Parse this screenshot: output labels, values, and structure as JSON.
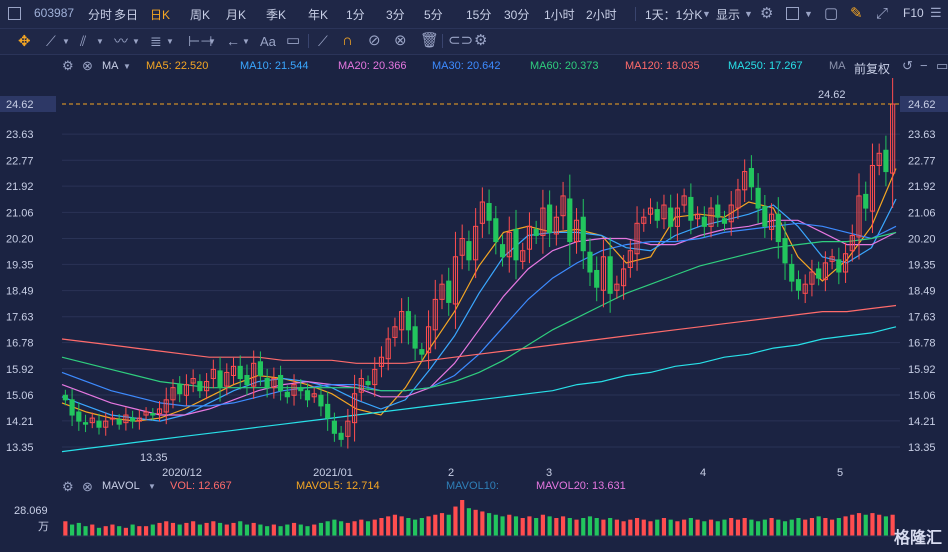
{
  "stock_code": "603987",
  "period_tabs": [
    "分时",
    "多日",
    "日K",
    "周K",
    "月K",
    "季K",
    "年K",
    "1分",
    "3分",
    "5分",
    "15分",
    "30分",
    "1小时",
    "2小时"
  ],
  "active_tab": "日K",
  "combo_label": "1天：1分K",
  "display_label": "显示",
  "f10_label": "F10",
  "draw_tools": {
    "text_tool_label": "Aa"
  },
  "ma_panel": {
    "indicator": "MA",
    "items": [
      {
        "label": "MA5: 22.520",
        "color": "#f5a623"
      },
      {
        "label": "MA10: 21.544",
        "color": "#3aa7ff"
      },
      {
        "label": "MA20: 20.366",
        "color": "#e577e0"
      },
      {
        "label": "MA30: 20.642",
        "color": "#3d8bff"
      },
      {
        "label": "MA60: 20.373",
        "color": "#2fce7e"
      },
      {
        "label": "MA120: 18.035",
        "color": "#ff6b6b"
      },
      {
        "label": "MA250: 17.267",
        "color": "#28e0e8"
      },
      {
        "label": "MA",
        "color": "#8c93ad"
      }
    ],
    "adjust_label": "前复权"
  },
  "price_axis": [
    "24.62",
    "23.63",
    "22.77",
    "21.92",
    "21.06",
    "20.20",
    "19.35",
    "18.49",
    "17.63",
    "16.78",
    "15.92",
    "15.06",
    "14.21",
    "13.35"
  ],
  "current_price_tag": "24.62",
  "high_marker": "24.62",
  "low_marker": "13.35",
  "x_labels": [
    "2020/12",
    "2021/01",
    "2",
    "3",
    "4",
    "5"
  ],
  "mavol_panel": {
    "indicator": "MAVOL",
    "items": [
      {
        "label": "VOL: 12.667",
        "color": "#ff6b6b"
      },
      {
        "label": "MAVOL5: 12.714",
        "color": "#f5a623"
      },
      {
        "label": "MAVOL10:",
        "color": "#2f7fb8"
      },
      {
        "label": "MAVOL20: 13.631",
        "color": "#e577e0"
      }
    ],
    "axis_value": "28.069",
    "axis_unit": "万"
  },
  "watermark": "格隆汇",
  "colors": {
    "up": "#ff4d4f",
    "down": "#22c55e",
    "accent": "#f5a623",
    "bg": "#1b2342"
  },
  "chart_data": {
    "type": "candlestick",
    "ylim": [
      13.0,
      24.8
    ],
    "closes": [
      14.9,
      14.4,
      14.2,
      14.1,
      14.3,
      14.0,
      14.2,
      14.3,
      14.1,
      14.4,
      14.2,
      14.3,
      14.5,
      14.4,
      14.6,
      14.9,
      15.3,
      15.1,
      15.4,
      15.6,
      15.2,
      15.5,
      15.9,
      15.3,
      15.8,
      16.0,
      15.6,
      15.4,
      16.1,
      15.7,
      15.3,
      15.6,
      15.2,
      15.0,
      15.4,
      15.2,
      14.9,
      15.1,
      14.7,
      14.3,
      13.8,
      13.6,
      14.2,
      15.1,
      15.6,
      15.4,
      15.9,
      16.3,
      16.9,
      17.3,
      17.8,
      17.2,
      16.6,
      16.4,
      17.3,
      18.2,
      18.7,
      18.1,
      19.6,
      20.2,
      19.5,
      20.6,
      21.4,
      20.8,
      20.1,
      19.6,
      20.4,
      19.5,
      19.8,
      20.6,
      20.3,
      21.2,
      20.4,
      20.9,
      21.6,
      20.1,
      20.8,
      19.8,
      19.1,
      18.6,
      19.6,
      18.4,
      18.7,
      19.2,
      19.8,
      20.7,
      20.9,
      21.2,
      20.8,
      21.3,
      20.6,
      21.2,
      21.6,
      20.8,
      21.0,
      20.6,
      21.2,
      20.9,
      20.7,
      21.3,
      21.8,
      22.4,
      21.9,
      21.2,
      20.6,
      21.0,
      20.1,
      19.4,
      18.8,
      18.5,
      18.7,
      19.1,
      18.9,
      19.4,
      19.6,
      19.1,
      19.7,
      20.3,
      21.6,
      21.2,
      22.6,
      23.0,
      22.4,
      24.62
    ],
    "volumes": [
      9,
      7,
      8,
      6,
      7,
      5,
      6,
      7,
      6,
      5,
      7,
      6,
      6,
      7,
      8,
      9,
      8,
      7,
      8,
      9,
      7,
      8,
      9,
      8,
      7,
      8,
      9,
      7,
      8,
      7,
      6,
      7,
      6,
      7,
      8,
      7,
      6,
      7,
      8,
      9,
      10,
      9,
      8,
      9,
      10,
      9,
      10,
      11,
      12,
      13,
      12,
      11,
      10,
      11,
      12,
      13,
      14,
      13,
      18,
      22,
      17,
      16,
      15,
      14,
      13,
      12,
      13,
      12,
      11,
      12,
      11,
      13,
      12,
      11,
      12,
      11,
      10,
      11,
      12,
      11,
      10,
      11,
      10,
      9,
      10,
      11,
      10,
      9,
      10,
      11,
      10,
      9,
      10,
      11,
      10,
      9,
      10,
      9,
      10,
      11,
      10,
      11,
      10,
      9,
      10,
      11,
      10,
      9,
      10,
      11,
      10,
      11,
      12,
      11,
      10,
      11,
      12,
      13,
      14,
      13,
      14,
      13,
      12,
      13
    ],
    "ma_series": [
      {
        "name": "MA5",
        "values": [
          14.8,
          14.5,
          14.3,
          14.2,
          14.3,
          14.6,
          15.0,
          15.4,
          15.7,
          15.6,
          15.4,
          15.1,
          14.6,
          14.4,
          15.3,
          16.6,
          17.8,
          19.3,
          20.4,
          20.6,
          20.4,
          20.5,
          20.3,
          19.4,
          19.6,
          20.9,
          21.0,
          20.9,
          21.4,
          21.2,
          19.6,
          18.8,
          19.5,
          20.6,
          22.5
        ]
      },
      {
        "name": "MA10",
        "values": [
          15.0,
          14.7,
          14.4,
          14.3,
          14.2,
          14.4,
          14.8,
          15.2,
          15.5,
          15.6,
          15.5,
          15.3,
          14.9,
          14.6,
          14.9,
          15.9,
          17.0,
          18.4,
          19.6,
          20.3,
          20.4,
          20.4,
          20.3,
          19.9,
          19.8,
          20.3,
          20.6,
          20.8,
          21.0,
          21.3,
          20.6,
          19.6,
          19.4,
          19.9,
          21.5
        ]
      },
      {
        "name": "MA20",
        "values": [
          15.4,
          15.1,
          14.8,
          14.6,
          14.4,
          14.4,
          14.6,
          14.9,
          15.2,
          15.4,
          15.5,
          15.4,
          15.3,
          15.0,
          15.0,
          15.3,
          16.1,
          17.2,
          18.3,
          19.2,
          19.8,
          20.1,
          20.2,
          20.2,
          20.0,
          20.0,
          20.3,
          20.5,
          20.6,
          20.8,
          20.8,
          20.4,
          20.0,
          20.0,
          20.4
        ]
      },
      {
        "name": "MA30",
        "values": [
          15.8,
          15.5,
          15.2,
          15.0,
          14.8,
          14.7,
          14.7,
          14.8,
          15.0,
          15.2,
          15.3,
          15.4,
          15.4,
          15.2,
          15.2,
          15.3,
          15.7,
          16.4,
          17.3,
          18.2,
          18.9,
          19.4,
          19.8,
          20.0,
          20.1,
          20.1,
          20.2,
          20.4,
          20.5,
          20.6,
          20.7,
          20.6,
          20.4,
          20.2,
          20.6
        ]
      },
      {
        "name": "MA60",
        "values": [
          16.3,
          16.1,
          15.9,
          15.7,
          15.5,
          15.4,
          15.3,
          15.3,
          15.3,
          15.3,
          15.3,
          15.3,
          15.3,
          15.2,
          15.2,
          15.3,
          15.5,
          15.8,
          16.2,
          16.7,
          17.2,
          17.6,
          18.0,
          18.4,
          18.7,
          19.0,
          19.3,
          19.5,
          19.7,
          19.9,
          20.0,
          20.1,
          20.1,
          20.2,
          20.4
        ]
      },
      {
        "name": "MA120",
        "values": [
          16.9,
          16.8,
          16.7,
          16.6,
          16.5,
          16.4,
          16.3,
          16.3,
          16.3,
          16.2,
          16.2,
          16.2,
          16.1,
          16.1,
          16.1,
          16.2,
          16.3,
          16.4,
          16.5,
          16.6,
          16.7,
          16.8,
          16.9,
          17.0,
          17.1,
          17.2,
          17.3,
          17.4,
          17.5,
          17.6,
          17.7,
          17.8,
          17.8,
          17.9,
          18.0
        ]
      },
      {
        "name": "MA250",
        "values": [
          13.2,
          13.3,
          13.4,
          13.5,
          13.6,
          13.7,
          13.8,
          13.9,
          14.0,
          14.1,
          14.2,
          14.3,
          14.4,
          14.5,
          14.6,
          14.7,
          14.8,
          14.9,
          15.0,
          15.1,
          15.2,
          15.4,
          15.5,
          15.7,
          15.8,
          16.0,
          16.1,
          16.3,
          16.4,
          16.6,
          16.7,
          16.9,
          17.0,
          17.1,
          17.3
        ]
      }
    ]
  }
}
